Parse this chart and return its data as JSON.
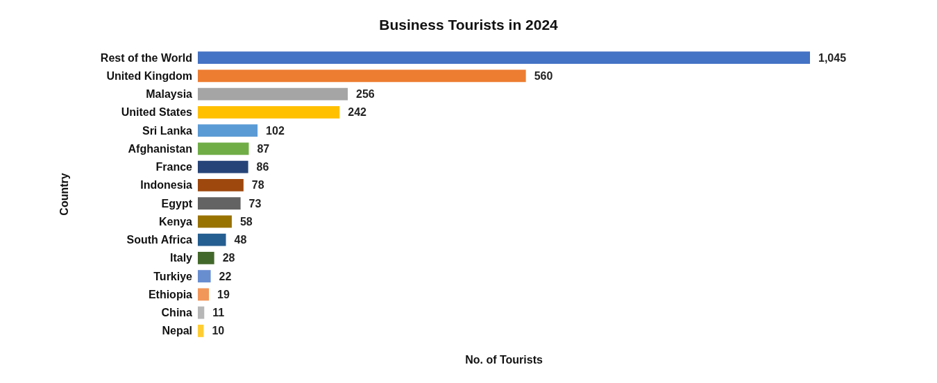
{
  "chart_data": {
    "type": "bar",
    "orientation": "horizontal",
    "title": "Business Tourists in 2024",
    "xlabel": "No. of Tourists",
    "ylabel": "Country",
    "categories": [
      "Rest of the World",
      "United Kingdom",
      "Malaysia",
      "United States",
      "Sri Lanka",
      "Afghanistan",
      "France",
      "Indonesia",
      "Egypt",
      "Kenya",
      "South Africa",
      "Italy",
      "Turkiye",
      "Ethiopia",
      "China",
      "Nepal"
    ],
    "values": [
      1045,
      560,
      256,
      242,
      102,
      87,
      86,
      78,
      73,
      58,
      48,
      28,
      22,
      19,
      11,
      10
    ],
    "value_labels": [
      "1,045",
      "560",
      "256",
      "242",
      "102",
      "87",
      "86",
      "78",
      "73",
      "58",
      "48",
      "28",
      "22",
      "19",
      "11",
      "10"
    ],
    "colors": [
      "#4472c4",
      "#ed7d31",
      "#a5a5a5",
      "#ffc000",
      "#5b9bd5",
      "#70ad47",
      "#264478",
      "#9e480e",
      "#636363",
      "#997300",
      "#255e91",
      "#43682b",
      "#698ed0",
      "#f1975a",
      "#b7b7b7",
      "#ffcd33"
    ]
  }
}
